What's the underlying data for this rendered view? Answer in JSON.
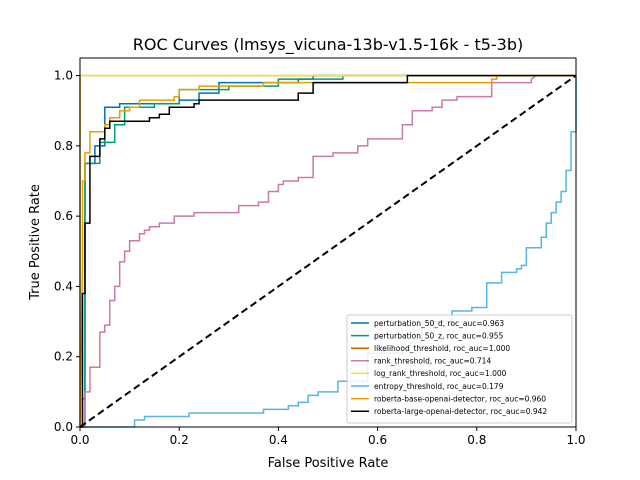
{
  "chart_data": {
    "type": "line",
    "title": "ROC Curves (lmsys_vicuna-13b-v1.5-16k - t5-3b)",
    "xlabel": "False Positive Rate",
    "ylabel": "True Positive Rate",
    "xlim": [
      0.0,
      1.0
    ],
    "ylim": [
      0.0,
      1.05
    ],
    "xticks": [
      0.0,
      0.2,
      0.4,
      0.6,
      0.8,
      1.0
    ],
    "yticks": [
      0.0,
      0.2,
      0.4,
      0.6,
      0.8,
      1.0
    ],
    "xtick_labels": [
      "0.0",
      "0.2",
      "0.4",
      "0.6",
      "0.8",
      "1.0"
    ],
    "ytick_labels": [
      "0.0",
      "0.2",
      "0.4",
      "0.6",
      "0.8",
      "1.0"
    ],
    "grid": false,
    "legend_position": "lower right",
    "series": [
      {
        "name": "perturbation_50_d, roc_auc=0.963",
        "color": "#0072B2",
        "x": [
          0,
          0.01,
          0.01,
          0.03,
          0.03,
          0.05,
          0.05,
          0.08,
          0.08,
          0.12,
          0.12,
          0.2,
          0.2,
          0.24,
          0.24,
          0.28,
          0.28,
          0.44,
          0.44,
          0.47,
          0.47,
          0.67,
          0.67,
          1.0
        ],
        "y": [
          0,
          0,
          0.75,
          0.75,
          0.8,
          0.8,
          0.91,
          0.91,
          0.92,
          0.92,
          0.92,
          0.92,
          0.93,
          0.93,
          0.95,
          0.95,
          0.98,
          0.98,
          0.99,
          0.99,
          1.0,
          1.0,
          1.0,
          1.0
        ]
      },
      {
        "name": "perturbation_50_z, roc_auc=0.955",
        "color": "#009E73",
        "x": [
          0,
          0.005,
          0.005,
          0.01,
          0.01,
          0.04,
          0.04,
          0.07,
          0.07,
          0.09,
          0.09,
          0.15,
          0.15,
          0.2,
          0.2,
          0.3,
          0.3,
          0.4,
          0.4,
          0.53,
          0.53,
          1.0
        ],
        "y": [
          0,
          0,
          0.08,
          0.08,
          0.75,
          0.75,
          0.81,
          0.81,
          0.86,
          0.86,
          0.91,
          0.91,
          0.92,
          0.92,
          0.96,
          0.96,
          0.97,
          0.97,
          0.99,
          0.99,
          1.0,
          1.0
        ]
      },
      {
        "name": "likelihood_threshold, roc_auc=1.000",
        "color": "#D55E00",
        "x": [
          0,
          0,
          1.0
        ],
        "y": [
          0,
          1.0,
          1.0
        ]
      },
      {
        "name": "rank_threshold, roc_auc=0.714",
        "color": "#CC79A7",
        "x": [
          0,
          0.01,
          0.01,
          0.02,
          0.02,
          0.04,
          0.04,
          0.05,
          0.05,
          0.06,
          0.06,
          0.07,
          0.07,
          0.08,
          0.08,
          0.09,
          0.09,
          0.1,
          0.1,
          0.12,
          0.12,
          0.13,
          0.13,
          0.14,
          0.14,
          0.16,
          0.16,
          0.19,
          0.19,
          0.23,
          0.23,
          0.32,
          0.32,
          0.36,
          0.36,
          0.38,
          0.38,
          0.4,
          0.4,
          0.41,
          0.41,
          0.44,
          0.44,
          0.47,
          0.47,
          0.51,
          0.51,
          0.56,
          0.56,
          0.58,
          0.58,
          0.65,
          0.65,
          0.67,
          0.67,
          0.71,
          0.71,
          0.73,
          0.73,
          0.76,
          0.76,
          0.83,
          0.83,
          0.91,
          0.91,
          0.92,
          1.0
        ],
        "y": [
          0,
          0,
          0.1,
          0.1,
          0.17,
          0.17,
          0.27,
          0.27,
          0.29,
          0.29,
          0.36,
          0.36,
          0.4,
          0.4,
          0.47,
          0.47,
          0.5,
          0.5,
          0.53,
          0.53,
          0.55,
          0.55,
          0.56,
          0.56,
          0.57,
          0.57,
          0.58,
          0.58,
          0.6,
          0.6,
          0.61,
          0.61,
          0.63,
          0.63,
          0.64,
          0.64,
          0.67,
          0.67,
          0.69,
          0.69,
          0.7,
          0.7,
          0.71,
          0.71,
          0.77,
          0.77,
          0.78,
          0.78,
          0.8,
          0.8,
          0.82,
          0.82,
          0.86,
          0.86,
          0.9,
          0.9,
          0.91,
          0.91,
          0.93,
          0.93,
          0.94,
          0.94,
          0.98,
          0.98,
          0.99,
          1.0,
          1.0
        ]
      },
      {
        "name": "log_rank_threshold, roc_auc=1.000",
        "color": "#F0E442",
        "x": [
          0,
          0,
          1.0
        ],
        "y": [
          0,
          1.0,
          1.0
        ]
      },
      {
        "name": "entropy_threshold, roc_auc=0.179",
        "color": "#56B4E9",
        "x": [
          0,
          0.11,
          0.11,
          0.13,
          0.13,
          0.22,
          0.22,
          0.37,
          0.37,
          0.42,
          0.42,
          0.44,
          0.44,
          0.46,
          0.46,
          0.48,
          0.48,
          0.52,
          0.52,
          0.58,
          0.58,
          0.65,
          0.65,
          0.69,
          0.69,
          0.75,
          0.75,
          0.79,
          0.79,
          0.82,
          0.82,
          0.85,
          0.85,
          0.88,
          0.88,
          0.89,
          0.89,
          0.9,
          0.9,
          0.93,
          0.93,
          0.94,
          0.94,
          0.95,
          0.95,
          0.96,
          0.96,
          0.97,
          0.97,
          0.98,
          0.98,
          0.99,
          0.99,
          1.0,
          1.0
        ],
        "y": [
          0,
          0,
          0.02,
          0.02,
          0.03,
          0.03,
          0.04,
          0.04,
          0.05,
          0.05,
          0.06,
          0.06,
          0.07,
          0.07,
          0.09,
          0.09,
          0.1,
          0.1,
          0.13,
          0.13,
          0.21,
          0.21,
          0.24,
          0.24,
          0.3,
          0.3,
          0.33,
          0.33,
          0.34,
          0.34,
          0.41,
          0.41,
          0.44,
          0.44,
          0.45,
          0.45,
          0.46,
          0.46,
          0.51,
          0.51,
          0.54,
          0.54,
          0.58,
          0.58,
          0.61,
          0.61,
          0.64,
          0.64,
          0.67,
          0.67,
          0.73,
          0.73,
          0.84,
          0.84,
          1.0
        ]
      },
      {
        "name": "roberta-base-openai-detector, roc_auc=0.960",
        "color": "#E69F00",
        "x": [
          0,
          0.005,
          0.005,
          0.01,
          0.01,
          0.02,
          0.02,
          0.05,
          0.05,
          0.06,
          0.06,
          0.08,
          0.08,
          0.1,
          0.1,
          0.12,
          0.12,
          0.19,
          0.19,
          0.2,
          0.2,
          0.24,
          0.24,
          0.3,
          0.3,
          0.37,
          0.37,
          0.44,
          0.44,
          0.6,
          0.6,
          0.83,
          0.83,
          0.84,
          0.84,
          1.0
        ],
        "y": [
          0,
          0.47,
          0.7,
          0.7,
          0.78,
          0.78,
          0.84,
          0.84,
          0.86,
          0.86,
          0.88,
          0.88,
          0.9,
          0.9,
          0.91,
          0.91,
          0.93,
          0.93,
          0.94,
          0.94,
          0.96,
          0.96,
          0.97,
          0.97,
          0.97,
          0.97,
          0.98,
          0.98,
          0.98,
          0.98,
          0.98,
          0.98,
          0.99,
          0.99,
          1.0,
          1.0
        ]
      },
      {
        "name": "roberta-large-openai-detector, roc_auc=0.942",
        "color": "#000000",
        "x": [
          0,
          0.005,
          0.005,
          0.01,
          0.01,
          0.02,
          0.02,
          0.04,
          0.04,
          0.05,
          0.05,
          0.06,
          0.06,
          0.08,
          0.08,
          0.14,
          0.14,
          0.16,
          0.16,
          0.18,
          0.18,
          0.23,
          0.23,
          0.24,
          0.24,
          0.29,
          0.29,
          0.44,
          0.44,
          0.47,
          0.47,
          0.48,
          0.48,
          0.66,
          0.66,
          1.0
        ],
        "y": [
          0,
          0,
          0.38,
          0.38,
          0.58,
          0.58,
          0.77,
          0.77,
          0.82,
          0.82,
          0.85,
          0.85,
          0.87,
          0.87,
          0.87,
          0.87,
          0.88,
          0.88,
          0.89,
          0.89,
          0.91,
          0.91,
          0.92,
          0.92,
          0.93,
          0.93,
          0.93,
          0.93,
          0.95,
          0.95,
          0.98,
          0.98,
          0.98,
          0.98,
          1.0,
          1.0
        ]
      }
    ],
    "reference_line": {
      "style": "dashed",
      "color": "#000000",
      "x": [
        0,
        1
      ],
      "y": [
        0,
        1
      ]
    }
  }
}
